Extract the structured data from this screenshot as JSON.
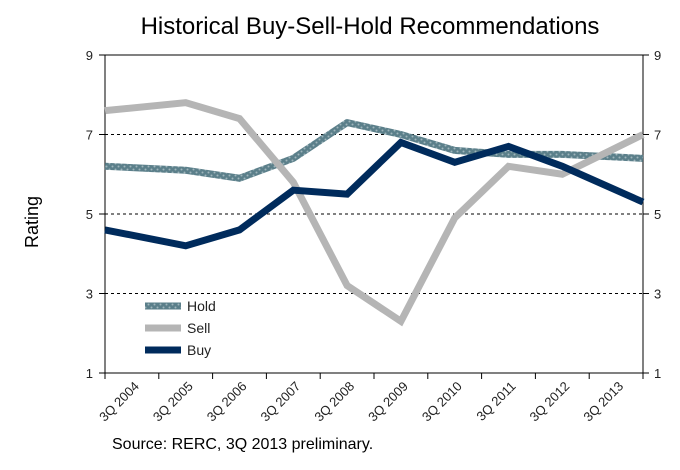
{
  "chart_data": {
    "type": "line",
    "title": "Historical Buy-Sell-Hold Recommendations",
    "ylabel": "Rating",
    "xlabel": "",
    "ylim": [
      1,
      9
    ],
    "yticks": [
      1,
      3,
      5,
      7,
      9
    ],
    "gridlines": [
      3,
      5,
      7
    ],
    "grid_style": "dashed",
    "legend_position": "lower-left",
    "categories": [
      "3Q 2004",
      "3Q 2005",
      "3Q 2006",
      "3Q 2007",
      "3Q 2008",
      "3Q 2009",
      "3Q 2010",
      "3Q 2011",
      "3Q 2012",
      "3Q 2013"
    ],
    "series": [
      {
        "name": "Hold",
        "color": "#5b7f8a",
        "pattern": "textured",
        "values": [
          6.2,
          6.1,
          5.9,
          6.4,
          7.3,
          7.0,
          6.6,
          6.5,
          6.5,
          6.4
        ]
      },
      {
        "name": "Sell",
        "color": "#b5b5b5",
        "pattern": "solid",
        "values": [
          7.6,
          7.8,
          7.4,
          5.8,
          3.2,
          2.3,
          4.9,
          6.2,
          6.0,
          7.0
        ]
      },
      {
        "name": "Buy",
        "color": "#002b5c",
        "pattern": "solid",
        "values": [
          4.6,
          4.2,
          4.6,
          5.6,
          5.5,
          6.8,
          6.3,
          6.7,
          6.2,
          5.3
        ]
      }
    ],
    "source_note": "Source: RERC, 3Q 2013 preliminary."
  }
}
